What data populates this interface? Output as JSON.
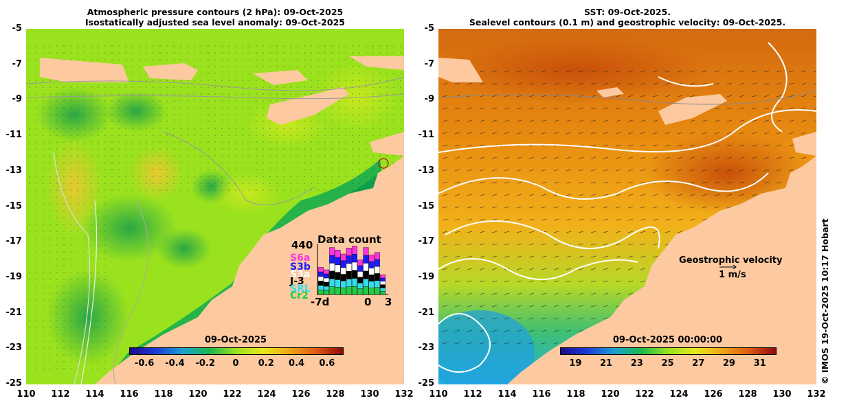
{
  "left_panel": {
    "title_line1": "Atmospheric pressure contours (2 hPa): 09-Oct-2025",
    "title_line2": "Isostatically adjusted sea level anomaly: 09-Oct-2025",
    "colorbar_title": "09-Oct-2025",
    "colorbar_ticks": [
      "-0.6",
      "-0.4",
      "-0.2",
      "0",
      "0.2",
      "0.4",
      "0.6"
    ],
    "data_count": {
      "title": "Data count",
      "max_label": "440",
      "missions": [
        "S6a",
        "S3b",
        "S3a",
        "J-3",
        "SRL",
        "Cr2"
      ],
      "mission_colors": [
        "#ff33dd",
        "#1a1aff",
        "#ffffff",
        "#000000",
        "#33ddee",
        "#22cc44"
      ],
      "x_labels": [
        "-7d",
        "0",
        "3"
      ],
      "bar_heights": [
        0.55,
        0.5,
        0.95,
        0.9,
        0.82,
        0.94,
        0.98,
        0.7,
        0.95,
        0.8,
        0.85,
        0.4
      ]
    }
  },
  "right_panel": {
    "title_line1": "SST: 09-Oct-2025.",
    "title_line2": "Sealevel contours (0.1 m) and geostrophic velocity: 09-Oct-2025.",
    "colorbar_title": "09-Oct-2025 00:00:00",
    "colorbar_ticks": [
      "19",
      "21",
      "23",
      "25",
      "27",
      "29",
      "31"
    ],
    "velocity_label": "Geostrophic velocity",
    "velocity_scale": "1 m/s"
  },
  "axes": {
    "y_ticks": [
      "-5",
      "-7",
      "-9",
      "-11",
      "-13",
      "-15",
      "-17",
      "-19",
      "-21",
      "-23",
      "-25"
    ],
    "x_ticks": [
      "110",
      "112",
      "114",
      "116",
      "118",
      "120",
      "122",
      "124",
      "126",
      "128",
      "130",
      "132"
    ]
  },
  "credit": "© IMOS 19-Oct-2025 10:17 Hobart",
  "colors": {
    "land": "#fcc9a0",
    "sla_base": "#9be21e",
    "sst_base": "#f0a516"
  }
}
